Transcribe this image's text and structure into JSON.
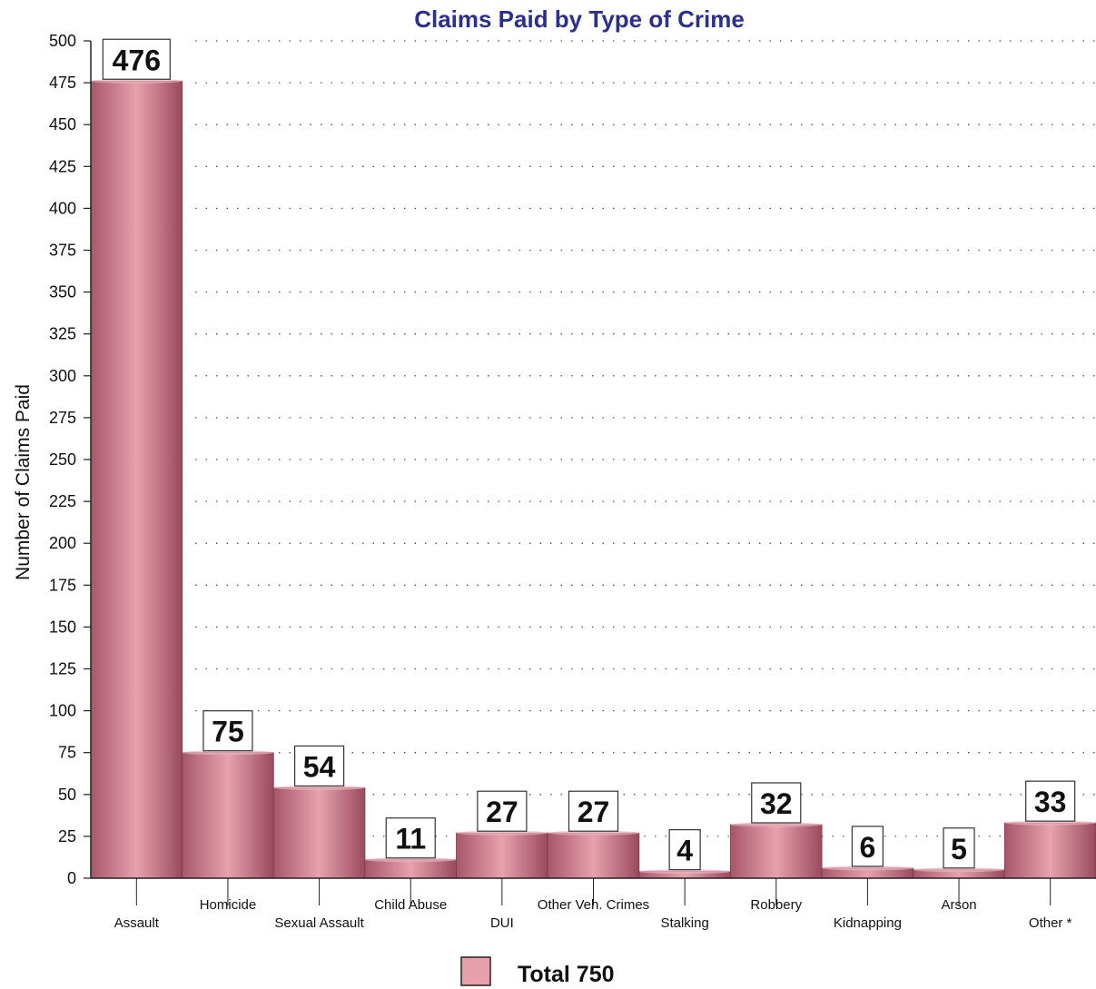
{
  "chart_data": {
    "type": "bar",
    "title": "Claims Paid by Type of Crime",
    "xlabel": "",
    "ylabel": "Number of Claims Paid",
    "ylim": [
      0,
      500
    ],
    "ytick_step": 25,
    "grid": true,
    "legend_placement": "bottom-center",
    "categories": [
      "Assault",
      "Homicide",
      "Sexual Assault",
      "Child Abuse",
      "DUI",
      "Other Veh. Crimes",
      "Stalking",
      "Robbery",
      "Kidnapping",
      "Arson",
      "Other *"
    ],
    "values": [
      476,
      75,
      54,
      11,
      27,
      27,
      4,
      32,
      6,
      5,
      33
    ],
    "series": [
      {
        "name": "Total 750",
        "values": [
          476,
          75,
          54,
          11,
          27,
          27,
          4,
          32,
          6,
          5,
          33
        ]
      }
    ],
    "bar_color": "#d98a98"
  }
}
